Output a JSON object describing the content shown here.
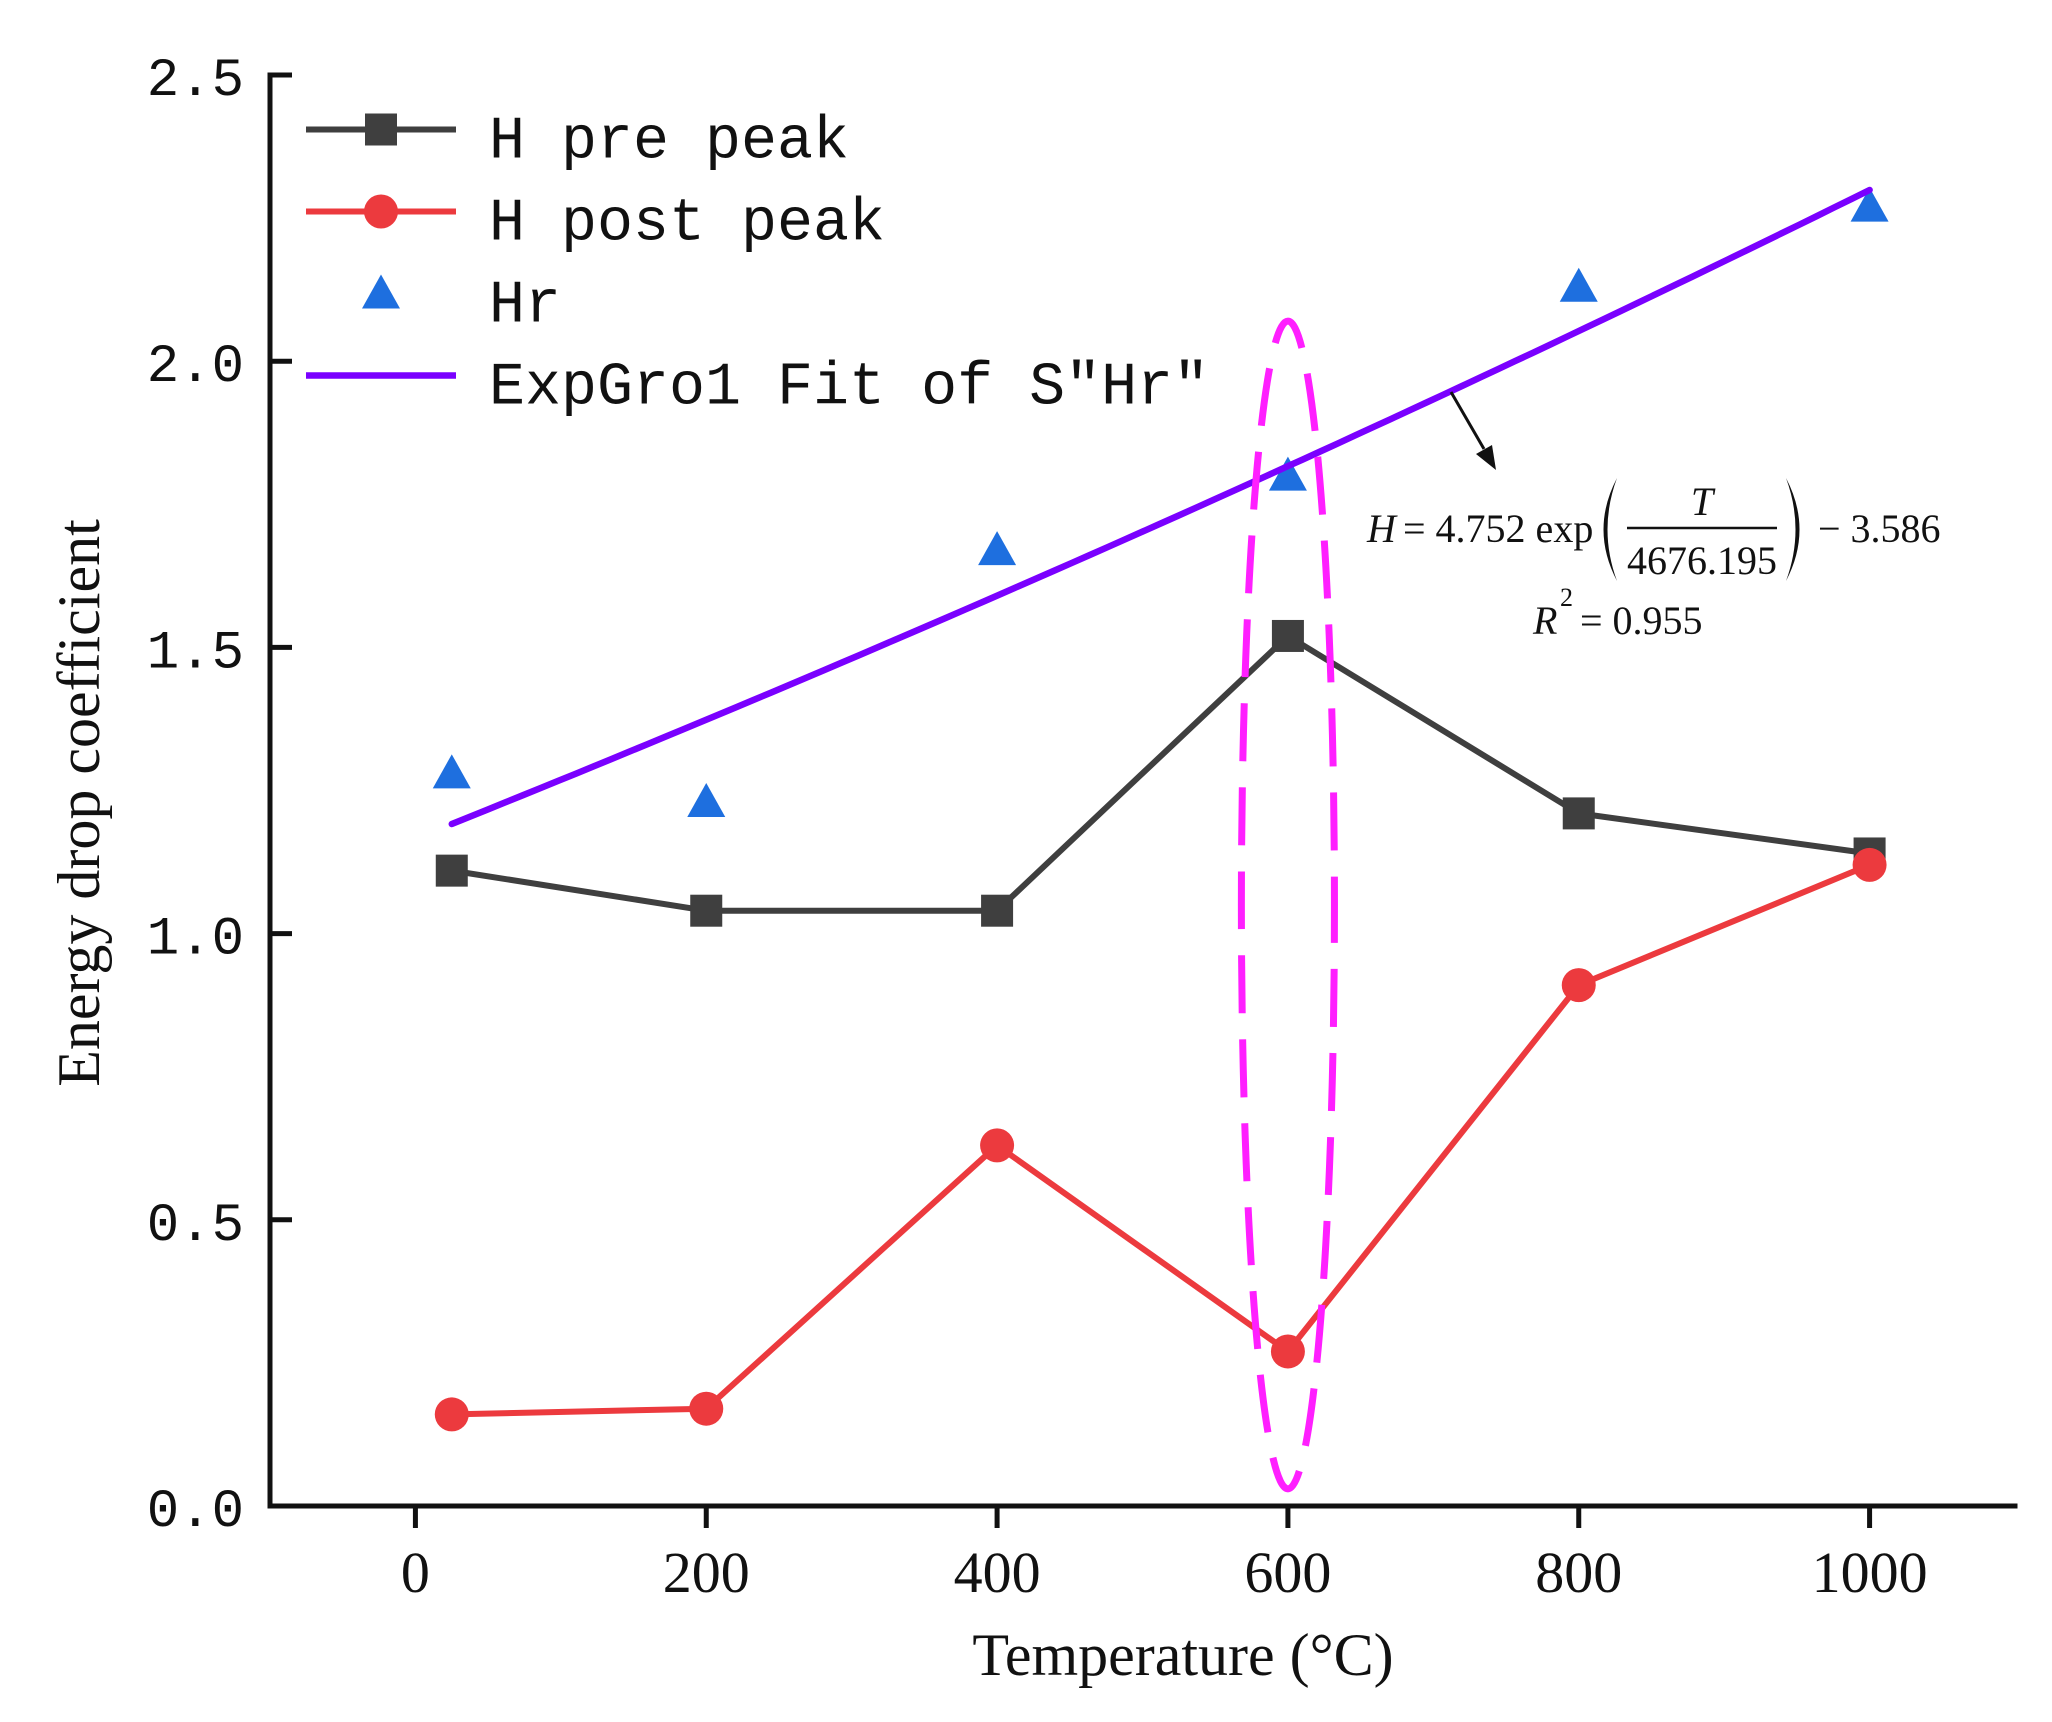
{
  "chart_data": {
    "type": "line",
    "xlabel": "Temperature (°C)",
    "ylabel": "Energy drop coefficient",
    "xlim": [
      -100,
      1100
    ],
    "ylim": [
      0,
      2.5
    ],
    "x_ticks": [
      "0",
      "200",
      "400",
      "600",
      "800",
      "1000"
    ],
    "y_ticks": [
      "0.0",
      "0.5",
      "1.0",
      "1.5",
      "2.0",
      "2.5"
    ],
    "grid": false,
    "legend_position": "top-left",
    "series": [
      {
        "name": "H pre peak",
        "marker": "square",
        "line": true,
        "color": "#3f3f3f",
        "x": [
          25,
          200,
          400,
          600,
          800,
          1000
        ],
        "y": [
          1.11,
          1.04,
          1.04,
          1.52,
          1.21,
          1.14
        ]
      },
      {
        "name": "H post peak",
        "marker": "circle",
        "line": true,
        "color": "#ec3a3e",
        "x": [
          25,
          200,
          400,
          600,
          800,
          1000
        ],
        "y": [
          0.16,
          0.17,
          0.63,
          0.27,
          0.91,
          1.12
        ]
      },
      {
        "name": "Hr",
        "marker": "triangle",
        "line": false,
        "color": "#1e6fdf",
        "x": [
          25,
          200,
          400,
          600,
          800,
          1000
        ],
        "y": [
          1.28,
          1.23,
          1.67,
          1.8,
          2.13,
          2.27
        ]
      },
      {
        "name": "ExpGro1 Fit of S″Hr″",
        "marker": null,
        "line": true,
        "color": "#7a00ff",
        "fit_model": {
          "a": 4.752,
          "b": 4676.195,
          "c": -3.586
        },
        "x_range": [
          25,
          1000
        ]
      }
    ],
    "annotations": {
      "equation": {
        "lhs": "H",
        "middle": "= 4.752 exp",
        "numerator": "T",
        "denominator": "4676.195",
        "tail": "− 3.586"
      },
      "r_squared": {
        "symbol": "R",
        "exponent": "2",
        "value": "= 0.955"
      },
      "highlight": {
        "x": 600,
        "color": "#ff1fff"
      }
    }
  }
}
